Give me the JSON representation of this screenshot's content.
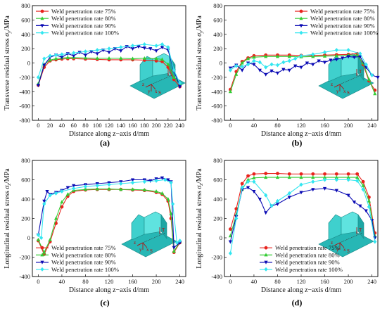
{
  "colors": {
    "75": "#e8231d",
    "80": "#33cc33",
    "90": "#0a0ab4",
    "100": "#33e6f0",
    "model": "#27b7b5"
  },
  "inset_labels": {
    "z": "z",
    "y": "y",
    "x": "x",
    "s": "S",
    "t": "T"
  },
  "chart_data": [
    {
      "type": "line",
      "panel": "(a)",
      "xlabel": "Distance along z−axis d/mm",
      "ylabel_main": "Transverse residual stress ",
      "ylabel_sym": "σ",
      "ylabel_sub": "y",
      "ylabel_unit": "/MPa",
      "xlim": [
        -10,
        250
      ],
      "ylim": [
        -800,
        800
      ],
      "xticks": [
        0,
        20,
        40,
        60,
        80,
        100,
        120,
        140,
        160,
        180,
        200,
        220,
        240
      ],
      "yticks": [
        -800,
        -600,
        -400,
        -200,
        0,
        200,
        400,
        600,
        800
      ],
      "legend_pos": "top-left",
      "series": [
        {
          "name": "Weld penetration rate 75%",
          "key": "75",
          "marker": "circle",
          "x": [
            0,
            10,
            20,
            30,
            40,
            50,
            60,
            80,
            100,
            120,
            140,
            160,
            180,
            200,
            210,
            220,
            230,
            240
          ],
          "y": [
            -310,
            -60,
            30,
            45,
            55,
            60,
            60,
            55,
            50,
            45,
            45,
            45,
            40,
            30,
            20,
            -60,
            -230,
            -330
          ]
        },
        {
          "name": "Weld penetration rate 80%",
          "key": "80",
          "marker": "triangle-up",
          "x": [
            0,
            10,
            20,
            30,
            40,
            50,
            60,
            80,
            100,
            120,
            140,
            160,
            180,
            200,
            210,
            220,
            230,
            240
          ],
          "y": [
            -290,
            -20,
            40,
            60,
            70,
            75,
            75,
            70,
            65,
            65,
            65,
            60,
            65,
            60,
            50,
            -20,
            -200,
            -300
          ]
        },
        {
          "name": "Weld penetration rate 90%",
          "key": "90",
          "marker": "triangle-down",
          "x": [
            0,
            10,
            20,
            30,
            40,
            50,
            60,
            70,
            80,
            90,
            100,
            110,
            120,
            130,
            140,
            150,
            160,
            170,
            180,
            190,
            200,
            210,
            220,
            230,
            240
          ],
          "y": [
            -310,
            -30,
            80,
            110,
            80,
            130,
            100,
            150,
            110,
            160,
            130,
            180,
            150,
            200,
            170,
            230,
            200,
            230,
            210,
            200,
            170,
            220,
            180,
            -110,
            -330
          ]
        },
        {
          "name": "Weld penetration rate 100%",
          "key": "100",
          "marker": "diamond",
          "x": [
            0,
            10,
            20,
            30,
            40,
            60,
            80,
            100,
            120,
            140,
            160,
            180,
            200,
            210,
            220,
            230,
            240
          ],
          "y": [
            -200,
            60,
            100,
            110,
            120,
            140,
            160,
            180,
            200,
            220,
            240,
            260,
            240,
            260,
            220,
            -100,
            -280
          ]
        }
      ]
    },
    {
      "type": "line",
      "panel": "(b)",
      "xlabel": "Distance along z−axis d/mm",
      "ylabel_main": "Transverse residual stress ",
      "ylabel_sym": "σ",
      "ylabel_sub": "y",
      "ylabel_unit": "/MPa",
      "xlim": [
        -10,
        250
      ],
      "ylim": [
        -800,
        800
      ],
      "xticks": [
        0,
        40,
        80,
        120,
        160,
        200,
        240
      ],
      "yticks": [
        -800,
        -600,
        -400,
        -200,
        0,
        200,
        400,
        600,
        800
      ],
      "legend_pos": "top-right",
      "series": [
        {
          "name": "Weld penetration rate 75%",
          "key": "75",
          "marker": "circle",
          "x": [
            0,
            10,
            20,
            30,
            40,
            60,
            80,
            100,
            120,
            140,
            160,
            180,
            200,
            215,
            225,
            235,
            245
          ],
          "y": [
            -370,
            -120,
            20,
            70,
            100,
            110,
            110,
            110,
            105,
            105,
            110,
            115,
            120,
            130,
            -20,
            -250,
            -380
          ]
        },
        {
          "name": "Weld penetration rate 80%",
          "key": "80",
          "marker": "triangle-up",
          "x": [
            0,
            10,
            20,
            30,
            40,
            60,
            80,
            100,
            120,
            140,
            160,
            180,
            200,
            215,
            225,
            235,
            245
          ],
          "y": [
            -400,
            -160,
            0,
            60,
            80,
            90,
            90,
            90,
            85,
            90,
            95,
            100,
            110,
            110,
            0,
            -230,
            -430
          ]
        },
        {
          "name": "Weld penetration rate 90%",
          "key": "90",
          "marker": "triangle-down",
          "x": [
            0,
            10,
            20,
            30,
            40,
            50,
            60,
            70,
            80,
            90,
            100,
            110,
            120,
            130,
            140,
            150,
            160,
            170,
            180,
            190,
            200,
            210,
            220,
            230,
            240,
            250
          ],
          "y": [
            -70,
            -30,
            -100,
            0,
            -20,
            -100,
            -160,
            -110,
            -140,
            -90,
            -100,
            -40,
            -60,
            0,
            -20,
            30,
            10,
            40,
            50,
            70,
            90,
            80,
            90,
            -60,
            -170,
            -200
          ]
        },
        {
          "name": "Weld penetration rate 100%",
          "key": "100",
          "marker": "diamond",
          "x": [
            0,
            10,
            20,
            30,
            40,
            50,
            60,
            70,
            80,
            90,
            100,
            110,
            120,
            140,
            160,
            180,
            200,
            220,
            230,
            240
          ],
          "y": [
            -100,
            -40,
            -50,
            -20,
            30,
            10,
            -60,
            -20,
            -30,
            10,
            30,
            60,
            100,
            120,
            150,
            180,
            180,
            130,
            -20,
            -170
          ]
        }
      ]
    },
    {
      "type": "line",
      "panel": "(c)",
      "xlabel": "Distance along z−axis d/mm",
      "ylabel_main": "Longitudinal residual stress ",
      "ylabel_sym": "σ",
      "ylabel_sub": "z",
      "ylabel_unit": "/MPa",
      "xlim": [
        -10,
        250
      ],
      "ylim": [
        -400,
        800
      ],
      "xticks": [
        0,
        40,
        80,
        120,
        160,
        200,
        240
      ],
      "yticks": [
        -400,
        -200,
        0,
        200,
        400,
        600,
        800
      ],
      "legend_pos": "bottom-left",
      "series": [
        {
          "name": "Weld penetration rate 75%",
          "key": "75",
          "marker": "circle",
          "x": [
            0,
            10,
            20,
            30,
            40,
            50,
            60,
            80,
            100,
            120,
            140,
            160,
            180,
            200,
            210,
            220,
            225,
            230,
            240
          ],
          "y": [
            -30,
            -170,
            -40,
            150,
            320,
            430,
            480,
            495,
            500,
            500,
            500,
            495,
            490,
            470,
            450,
            380,
            200,
            -150,
            -50
          ]
        },
        {
          "name": "Weld penetration rate 80%",
          "key": "80",
          "marker": "triangle-up",
          "x": [
            0,
            10,
            20,
            30,
            40,
            50,
            60,
            80,
            100,
            120,
            140,
            160,
            180,
            200,
            210,
            220,
            225,
            230,
            240
          ],
          "y": [
            -20,
            -150,
            -20,
            200,
            370,
            450,
            490,
            500,
            505,
            505,
            500,
            500,
            495,
            480,
            460,
            400,
            250,
            -140,
            -40
          ]
        },
        {
          "name": "Weld penetration rate 90%",
          "key": "90",
          "marker": "triangle-down",
          "x": [
            0,
            10,
            15,
            20,
            30,
            40,
            50,
            60,
            80,
            100,
            120,
            140,
            160,
            180,
            190,
            200,
            210,
            220,
            225,
            230,
            240
          ],
          "y": [
            30,
            380,
            480,
            450,
            470,
            490,
            520,
            540,
            550,
            560,
            570,
            580,
            600,
            600,
            590,
            610,
            620,
            600,
            580,
            -100,
            -50
          ]
        },
        {
          "name": "Weld penetration rate 100%",
          "key": "100",
          "marker": "diamond",
          "x": [
            0,
            5,
            10,
            20,
            30,
            40,
            60,
            80,
            100,
            120,
            140,
            160,
            180,
            200,
            215,
            225,
            228,
            235,
            240
          ],
          "y": [
            30,
            0,
            350,
            440,
            460,
            480,
            510,
            530,
            540,
            550,
            560,
            570,
            580,
            590,
            600,
            570,
            350,
            -50,
            -30
          ]
        }
      ]
    },
    {
      "type": "line",
      "panel": "(d)",
      "xlabel": "Distance along z−axis d/mm",
      "ylabel_main": "Longitudinal residual stress ",
      "ylabel_sym": "σ",
      "ylabel_sub": "z",
      "ylabel_unit": "/MPa",
      "xlim": [
        -10,
        250
      ],
      "ylim": [
        -400,
        800
      ],
      "xticks": [
        0,
        40,
        80,
        120,
        160,
        200,
        240
      ],
      "yticks": [
        -400,
        -200,
        0,
        200,
        400,
        600,
        800
      ],
      "legend_pos": "bottom-right",
      "series": [
        {
          "name": "Weld penetration rate 75%",
          "key": "75",
          "marker": "circle",
          "x": [
            0,
            10,
            20,
            30,
            40,
            60,
            80,
            100,
            120,
            140,
            160,
            180,
            200,
            215,
            225,
            235,
            245
          ],
          "y": [
            90,
            300,
            560,
            640,
            660,
            665,
            665,
            660,
            660,
            660,
            660,
            660,
            660,
            660,
            580,
            420,
            50
          ]
        },
        {
          "name": "Weld penetration rate 80%",
          "key": "80",
          "marker": "triangle-up",
          "x": [
            0,
            10,
            20,
            30,
            40,
            60,
            80,
            100,
            120,
            140,
            160,
            180,
            200,
            215,
            225,
            235,
            245
          ],
          "y": [
            20,
            240,
            500,
            600,
            620,
            625,
            625,
            625,
            625,
            625,
            625,
            625,
            625,
            625,
            540,
            380,
            20
          ]
        },
        {
          "name": "Weld penetration rate 90%",
          "key": "90",
          "marker": "triangle-down",
          "x": [
            0,
            10,
            20,
            30,
            40,
            50,
            60,
            70,
            80,
            100,
            120,
            140,
            160,
            180,
            200,
            210,
            220,
            230,
            240,
            245
          ],
          "y": [
            -40,
            220,
            500,
            520,
            480,
            400,
            260,
            330,
            350,
            420,
            470,
            500,
            510,
            490,
            440,
            370,
            330,
            280,
            180,
            0
          ]
        },
        {
          "name": "Weld penetration rate 100%",
          "key": "100",
          "marker": "diamond",
          "x": [
            0,
            10,
            20,
            30,
            40,
            60,
            70,
            80,
            100,
            120,
            140,
            160,
            180,
            200,
            215,
            225,
            235,
            245
          ],
          "y": [
            -160,
            200,
            520,
            580,
            580,
            440,
            330,
            380,
            460,
            550,
            580,
            600,
            600,
            600,
            590,
            500,
            320,
            -40
          ]
        }
      ]
    }
  ]
}
